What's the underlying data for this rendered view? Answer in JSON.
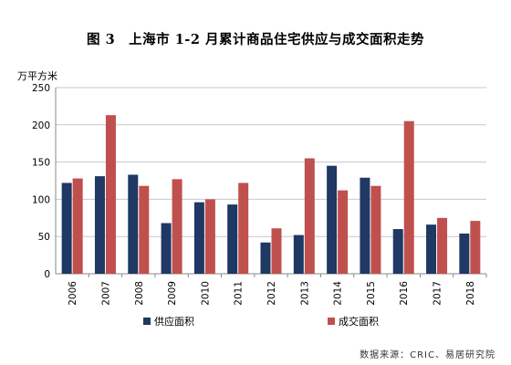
{
  "chart_data": {
    "type": "bar",
    "title": "图 3　上海市 1-2 月累计商品住宅供应与成交面积走势",
    "ylabel": "万平方米",
    "xlabel": "",
    "categories": [
      "2006",
      "2007",
      "2008",
      "2009",
      "2010",
      "2011",
      "2012",
      "2013",
      "2014",
      "2015",
      "2016",
      "2017",
      "2018"
    ],
    "series": [
      {
        "name": "供应面积",
        "color": "#1F3864",
        "values": [
          122,
          131,
          133,
          68,
          96,
          93,
          42,
          52,
          145,
          129,
          60,
          66,
          54
        ]
      },
      {
        "name": "成交面积",
        "color": "#C0504D",
        "values": [
          128,
          213,
          118,
          127,
          100,
          122,
          61,
          155,
          112,
          118,
          205,
          75,
          71
        ]
      }
    ],
    "ylim": [
      0,
      250
    ],
    "yticks": [
      0,
      50,
      100,
      150,
      200,
      250
    ],
    "grid": true,
    "legend_position": "bottom"
  },
  "source": "数据来源：CRIC、易居研究院"
}
